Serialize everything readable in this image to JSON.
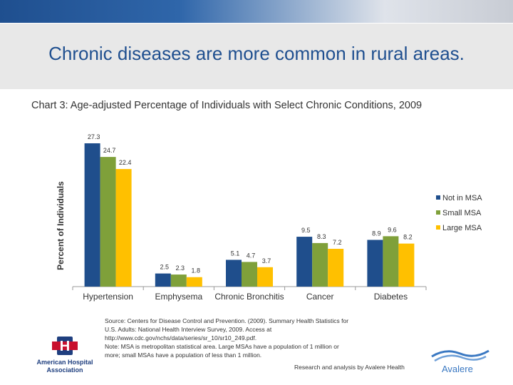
{
  "slide": {
    "headline": "Chronic diseases are more common in rural areas.",
    "source": [
      "Source: Centers for Disease Control and Prevention. (2009). Summary Health Statistics for",
      "U.S. Adults: National Health Interview Survey, 2009. Access at",
      "http://www.cdc.gov/nchs/data/series/sr_10/sr10_249.pdf.",
      "Note: MSA is metropolitan statistical area. Large MSAs have a population of 1 million or",
      "more; small MSAs have a population of less than 1 million."
    ],
    "credit": "Research and analysis by Avalere Health",
    "aha_logo_text": [
      "American Hospital",
      "Association"
    ],
    "aha_logo_letter": "H",
    "avalere_logo_text": "Avalere"
  },
  "chart_data": {
    "type": "bar",
    "title": "Chart 3: Age-adjusted Percentage of Individuals with Select Chronic Conditions, 2009",
    "ylabel": "Percent of Individuals",
    "xlabel": "",
    "categories": [
      "Hypertension",
      "Emphysema",
      "Chronic Bronchitis",
      "Cancer",
      "Diabetes"
    ],
    "series": [
      {
        "name": "Not in MSA",
        "color": "#1f4e8c",
        "values": [
          27.3,
          2.5,
          5.1,
          9.5,
          8.9
        ]
      },
      {
        "name": "Small MSA",
        "color": "#7fa03a",
        "values": [
          24.7,
          2.3,
          4.7,
          8.3,
          9.6
        ]
      },
      {
        "name": "Large MSA",
        "color": "#ffc000",
        "values": [
          22.4,
          1.8,
          3.7,
          7.2,
          8.2
        ]
      }
    ],
    "ylim": [
      0,
      27.3
    ],
    "grid": false,
    "legend_position": "right"
  }
}
